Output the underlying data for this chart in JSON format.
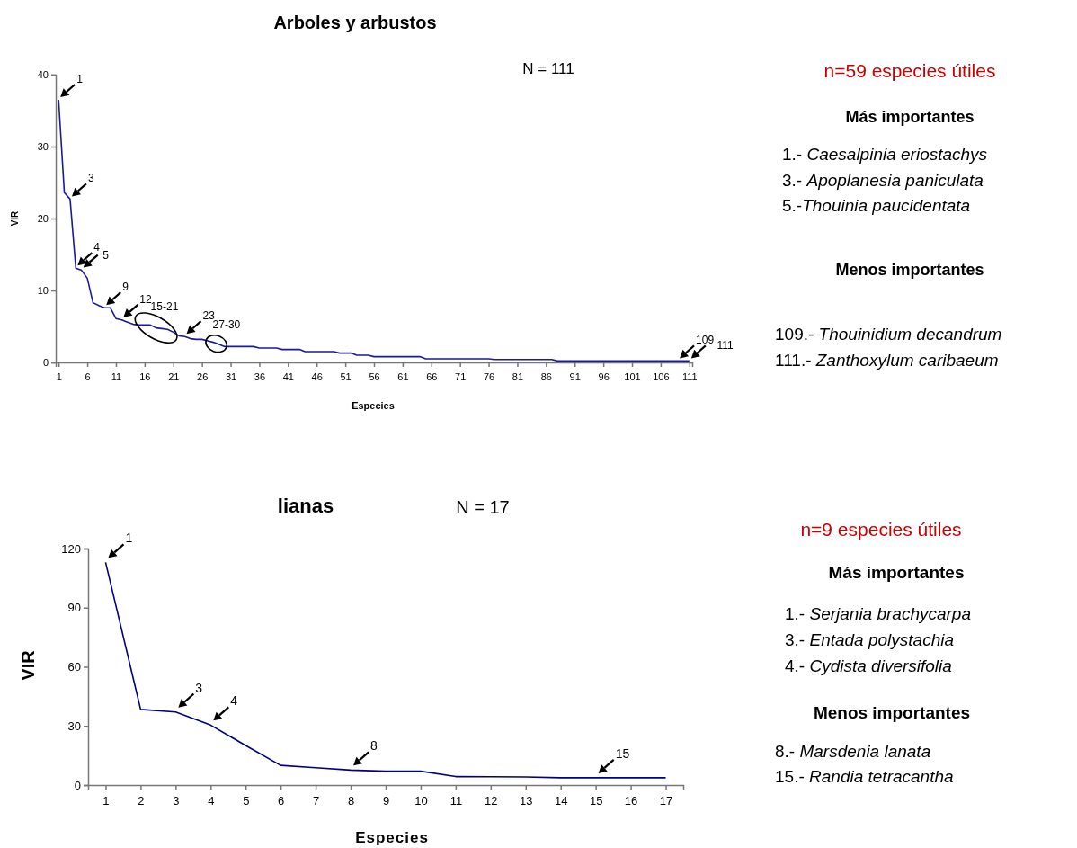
{
  "chart_data": [
    {
      "type": "line",
      "title": "Arboles y arbustos",
      "xlabel": "Especies",
      "ylabel": "VIR",
      "x": [
        1,
        2,
        3,
        4,
        5,
        6,
        7,
        8,
        9,
        10,
        11,
        12,
        13,
        14,
        15,
        16,
        17,
        18,
        19,
        20,
        21,
        22,
        23,
        24,
        25,
        26,
        27,
        28,
        29,
        30,
        31,
        32,
        33,
        34,
        35,
        36,
        37,
        38,
        39,
        40,
        41,
        42,
        43,
        44,
        45,
        46,
        47,
        48,
        49,
        50,
        51,
        52,
        53,
        54,
        55,
        56,
        57,
        58,
        59,
        60,
        61,
        62,
        63,
        64,
        65,
        66,
        67,
        68,
        69,
        70,
        71,
        72,
        73,
        74,
        75,
        76,
        77,
        78,
        79,
        80,
        81,
        82,
        83,
        84,
        85,
        86,
        87,
        88,
        89,
        90,
        91,
        92,
        93,
        94,
        95,
        96,
        97,
        98,
        99,
        100,
        101,
        102,
        103,
        104,
        105,
        106,
        107,
        108,
        109,
        110,
        111
      ],
      "series": [
        {
          "color": "#1a1a9a",
          "values": [
            36.5,
            23.6,
            22.7,
            13.1,
            12.8,
            11.7,
            8.3,
            7.9,
            7.6,
            7.6,
            6.1,
            5.9,
            5.6,
            5.3,
            5.2,
            5.2,
            5.2,
            4.8,
            4.7,
            4.6,
            4.2,
            3.7,
            3.6,
            3.3,
            3.2,
            3.2,
            3.0,
            2.8,
            2.5,
            2.2,
            2.2,
            2.2,
            2.2,
            2.2,
            2.2,
            2.0,
            2.0,
            2.0,
            2.0,
            1.8,
            1.8,
            1.8,
            1.8,
            1.5,
            1.5,
            1.5,
            1.5,
            1.5,
            1.5,
            1.3,
            1.3,
            1.3,
            1.0,
            1.0,
            1.0,
            0.8,
            0.8,
            0.8,
            0.8,
            0.8,
            0.8,
            0.8,
            0.8,
            0.8,
            0.5,
            0.5,
            0.5,
            0.5,
            0.5,
            0.5,
            0.5,
            0.5,
            0.5,
            0.5,
            0.5,
            0.5,
            0.4,
            0.4,
            0.4,
            0.4,
            0.4,
            0.4,
            0.4,
            0.4,
            0.4,
            0.4,
            0.4,
            0.2,
            0.2,
            0.2,
            0.2,
            0.2,
            0.2,
            0.2,
            0.2,
            0.2,
            0.2,
            0.2,
            0.2,
            0.2,
            0.2,
            0.2,
            0.2,
            0.2,
            0.2,
            0.2,
            0.2,
            0.2,
            0.2,
            0.2,
            0.2
          ]
        }
      ],
      "xlim": [
        0.5,
        111.5
      ],
      "xticks": [
        1,
        6,
        11,
        16,
        21,
        26,
        31,
        36,
        41,
        46,
        51,
        56,
        61,
        66,
        71,
        76,
        81,
        86,
        91,
        96,
        101,
        106,
        111
      ],
      "ylim": [
        0,
        40
      ],
      "yticks": [
        0,
        10,
        20,
        30,
        40
      ],
      "annotations": [
        "N = 111",
        "n=59 especies útiles",
        "Más importantes",
        "1.- Caesalpinia eriostachys",
        "3.- Apoplanesia paniculata",
        "5.-Thouinia paucidentata",
        "Menos importantes",
        "109.- Thouinidium decandrum",
        "111.- Zanthoxylum caribaeum",
        {
          "text": "1",
          "x": 1,
          "y": 36.5
        },
        {
          "text": "3",
          "x": 3,
          "y": 22.7
        },
        {
          "text": "4",
          "x": 4,
          "y": 13.1
        },
        {
          "text": "5",
          "x": 5,
          "y": 12.8
        },
        {
          "text": "9",
          "x": 9,
          "y": 7.6
        },
        {
          "text": "12",
          "x": 12,
          "y": 5.9
        },
        {
          "text": "15-21",
          "x": 18,
          "y": 4.8
        },
        {
          "text": "23",
          "x": 23,
          "y": 3.6
        },
        {
          "text": "27-30",
          "x": 28.5,
          "y": 2.6
        },
        {
          "text": "109",
          "x": 109,
          "y": 0.2
        },
        {
          "text": "111",
          "x": 111,
          "y": 0.2
        }
      ]
    },
    {
      "type": "line",
      "title": "lianas",
      "xlabel": "Especies",
      "ylabel": "VIR",
      "x": [
        1,
        2,
        3,
        4,
        5,
        6,
        7,
        8,
        9,
        10,
        11,
        12,
        13,
        14,
        15,
        16,
        17
      ],
      "series": [
        {
          "color": "#000080",
          "values": [
            113,
            38.4,
            37.1,
            30.4,
            20.1,
            10,
            8.8,
            7.6,
            7,
            7,
            4.3,
            4.2,
            4.1,
            3.7,
            3.7,
            3.7,
            3.7
          ]
        }
      ],
      "xlim": [
        0.5,
        17.5
      ],
      "xticks": [
        1,
        2,
        3,
        4,
        5,
        6,
        7,
        8,
        9,
        10,
        11,
        12,
        13,
        14,
        15,
        16,
        17
      ],
      "ylim": [
        0,
        120
      ],
      "yticks": [
        0,
        30,
        60,
        90,
        120
      ],
      "annotations": [
        "N = 17",
        "n=9 especies útiles",
        "Más importantes",
        "1.- Serjania brachycarpa",
        "3.- Entada polystachia",
        "4.- Cydista diversifolia",
        "Menos importantes",
        "8.- Marsdenia lanata",
        "15.- Randia tetracantha",
        {
          "text": "1",
          "x": 1,
          "y": 113
        },
        {
          "text": "3",
          "x": 3,
          "y": 37.1
        },
        {
          "text": "4",
          "x": 4,
          "y": 30.4
        },
        {
          "text": "8",
          "x": 8,
          "y": 7.6
        },
        {
          "text": "15",
          "x": 15,
          "y": 3.7
        }
      ]
    }
  ]
}
